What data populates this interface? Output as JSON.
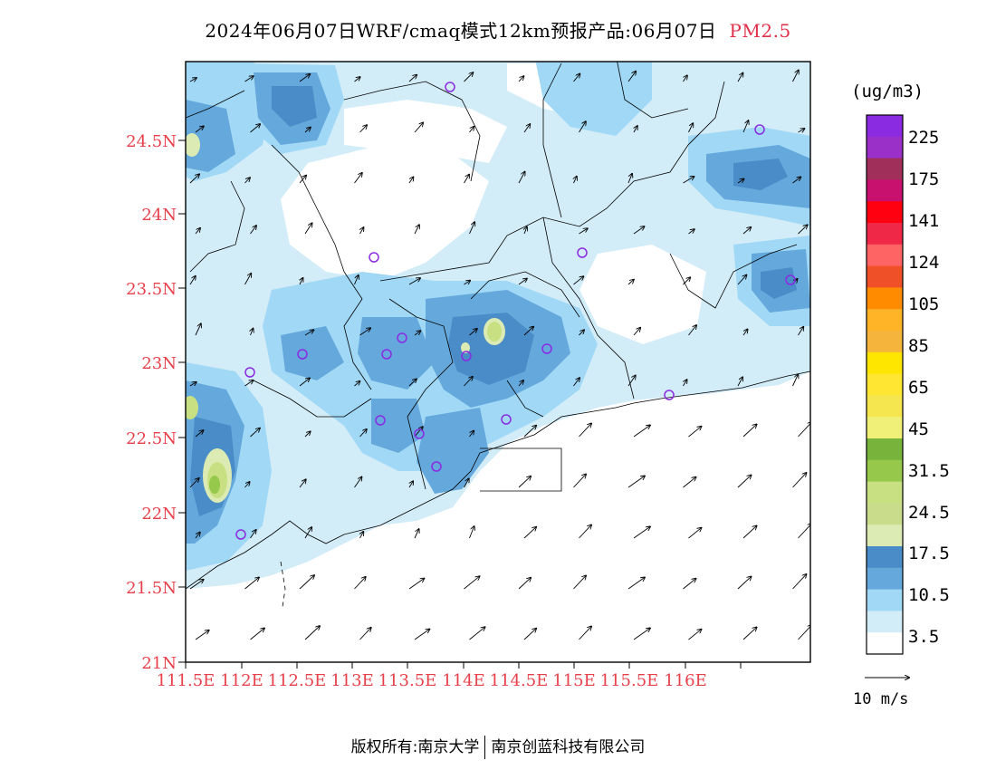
{
  "title": {
    "main": "2024年06月07日WRF/cmaq模式12km预报产品:06月07日",
    "pollutant": "PM2.5"
  },
  "footer": {
    "copyright": "版权所有:南京大学",
    "company": "南京创蓝科技有限公司"
  },
  "axes": {
    "lat_ticks": [
      "24.5N",
      "24N",
      "23.5N",
      "23N",
      "22.5N",
      "22N",
      "21.5N",
      "21N"
    ],
    "lon_ticks": [
      "111.5E",
      "112E",
      "112.5E",
      "113E",
      "113.5E",
      "114E",
      "114.5E",
      "115E",
      "115.5E",
      "116E"
    ],
    "tick_color": "#e8404a"
  },
  "legend": {
    "unit": "(ug/m3)",
    "labels": [
      "225",
      "175",
      "141",
      "124",
      "105",
      "85",
      "65",
      "45",
      "31.5",
      "24.5",
      "17.5",
      "10.5",
      "3.5"
    ],
    "colors": [
      "#8a2be2",
      "#9b30c8",
      "#a0305a",
      "#c8106e",
      "#ff0010",
      "#f02848",
      "#ff6464",
      "#f05028",
      "#ff8c00",
      "#ffb428",
      "#f5b43c",
      "#ffe600",
      "#ffe632",
      "#f5e650",
      "#f0f078",
      "#78b43c",
      "#96c84b",
      "#c8e082",
      "#c8dc8c",
      "#dcebb4",
      "#4a8cc8",
      "#64a8dc",
      "#a0d8f5",
      "#d2ecf8",
      "#ffffff"
    ]
  },
  "wind_scale": {
    "label": "10 m/s"
  },
  "stations": 19
}
